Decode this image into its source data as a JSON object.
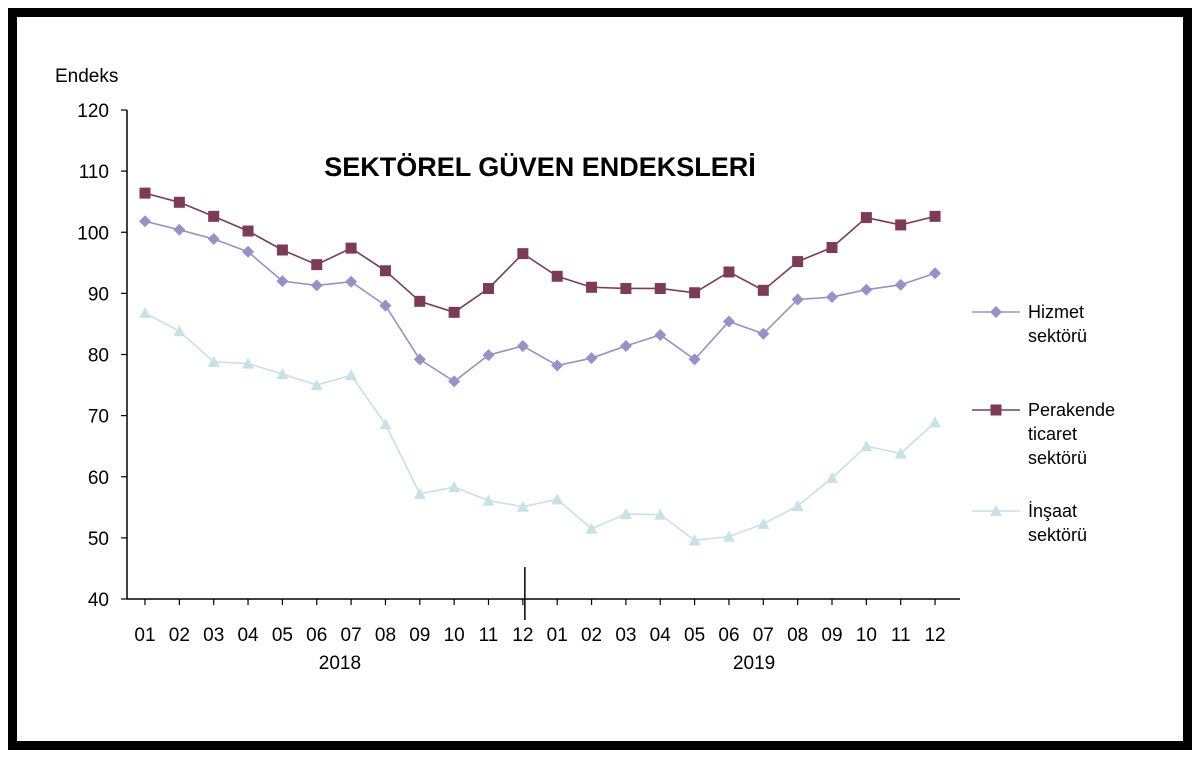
{
  "chart_data": {
    "type": "line",
    "title": "SEKTÖREL GÜVEN ENDEKSLERİ",
    "ylabel": "Endeks",
    "ylim": [
      40,
      120
    ],
    "yticks": [
      120,
      110,
      100,
      90,
      80,
      70,
      60,
      50,
      40
    ],
    "categories": [
      "01",
      "02",
      "03",
      "04",
      "05",
      "06",
      "07",
      "08",
      "09",
      "10",
      "11",
      "12",
      "01",
      "02",
      "03",
      "04",
      "05",
      "06",
      "07",
      "08",
      "09",
      "10",
      "11",
      "12"
    ],
    "year_labels": [
      "2018",
      "2019"
    ],
    "legend_position": "right",
    "grid": false,
    "series": [
      {
        "name": "Hizmet sektörü",
        "legend_lines": [
          "Hizmet",
          "sektörü"
        ],
        "color": "#9A90C8",
        "marker": "diamond",
        "values": [
          101.8,
          100.4,
          98.9,
          96.8,
          92.0,
          91.3,
          91.9,
          88.0,
          79.2,
          75.6,
          79.9,
          81.4,
          78.2,
          79.4,
          81.4,
          83.2,
          79.2,
          85.4,
          83.4,
          89.0,
          89.4,
          90.6,
          91.4,
          93.3
        ]
      },
      {
        "name": "Perakende ticaret sektörü",
        "legend_lines": [
          "Perakende",
          "ticaret",
          "sektörü"
        ],
        "color": "#7D3B55",
        "marker": "square",
        "values": [
          106.4,
          104.9,
          102.6,
          100.2,
          97.1,
          94.7,
          97.4,
          93.7,
          88.7,
          86.9,
          90.8,
          96.5,
          92.8,
          91.0,
          90.8,
          90.8,
          90.1,
          93.5,
          90.5,
          95.2,
          97.5,
          102.4,
          101.2,
          102.6
        ]
      },
      {
        "name": "İnşaat sektörü",
        "legend_lines": [
          "İnşaat",
          "sektörü"
        ],
        "color": "#C6E2E4",
        "marker": "triangle",
        "values": [
          86.8,
          83.8,
          78.8,
          78.5,
          76.8,
          75.0,
          76.6,
          68.6,
          57.2,
          58.3,
          56.1,
          55.1,
          56.3,
          51.5,
          53.9,
          53.8,
          49.6,
          50.2,
          52.3,
          55.2,
          59.8,
          65.0,
          63.8,
          68.9
        ]
      }
    ]
  }
}
